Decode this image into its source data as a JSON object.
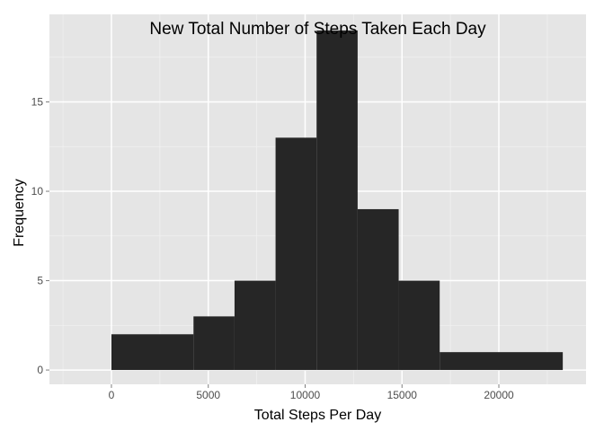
{
  "chart_data": {
    "type": "histogram",
    "title": "New Total Number of Steps Taken Each Day",
    "xlabel": "Total Steps Per Day",
    "ylabel": "Frequency",
    "xlim": [
      -3200,
      24500
    ],
    "ylim": [
      -0.8,
      19.9
    ],
    "xticks": [
      0,
      5000,
      10000,
      15000,
      20000
    ],
    "yticks": [
      0,
      5,
      10,
      15
    ],
    "bar_color": "#262626",
    "panel_color": "#e5e5e5",
    "grid_color": "#ffffff",
    "grid": true,
    "bins": [
      {
        "start": 0,
        "end": 4237,
        "count": 2
      },
      {
        "start": 4237,
        "end": 6355,
        "count": 3
      },
      {
        "start": 6355,
        "end": 8473,
        "count": 5
      },
      {
        "start": 8473,
        "end": 10591,
        "count": 13
      },
      {
        "start": 10591,
        "end": 12710,
        "count": 19
      },
      {
        "start": 12710,
        "end": 14828,
        "count": 9
      },
      {
        "start": 14828,
        "end": 16946,
        "count": 5
      },
      {
        "start": 16946,
        "end": 23300,
        "count": 1
      }
    ]
  }
}
